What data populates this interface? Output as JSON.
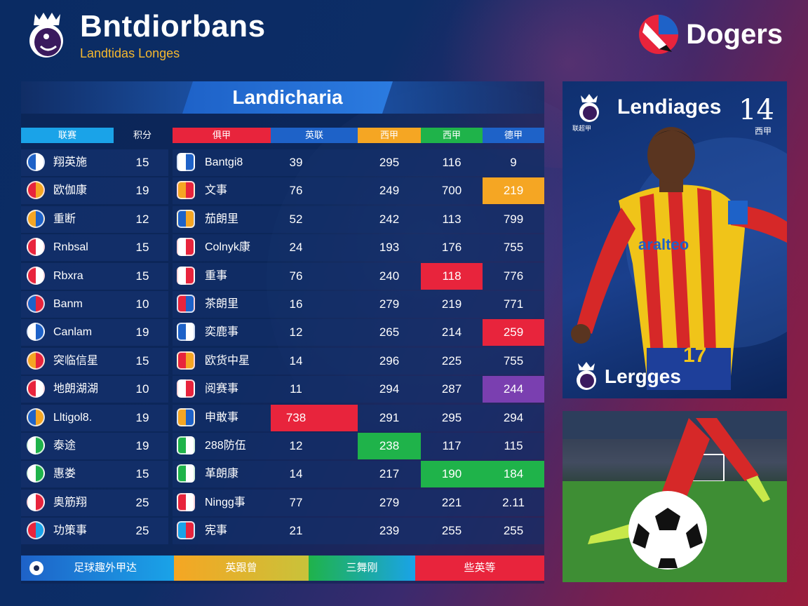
{
  "header": {
    "title": "Bntdiorbans",
    "subtitle": "Landtidas Longes",
    "partner_name": "Dogers"
  },
  "table": {
    "title": "Landicharia",
    "left_headers": [
      "联赛",
      "积分"
    ],
    "right_headers": [
      "俱甲",
      "英联",
      "西甲",
      "西甲",
      "德甲"
    ],
    "rows": [
      {
        "left_name": "翔英施",
        "left_val": "15",
        "club": "Bantgi8",
        "c1": "39",
        "c2": "295",
        "c3": "116",
        "c4": "9"
      },
      {
        "left_name": "欧伽康",
        "left_val": "19",
        "club": "文事",
        "c1": "76",
        "c2": "249",
        "c3": "700",
        "c4": "219"
      },
      {
        "left_name": "重断",
        "left_val": "12",
        "club": "茄朗里",
        "c1": "52",
        "c2": "242",
        "c3": "113",
        "c4": "799"
      },
      {
        "left_name": "Rnbsal",
        "left_val": "15",
        "club": "Colnyk康",
        "c1": "24",
        "c2": "193",
        "c3": "176",
        "c4": "755"
      },
      {
        "left_name": "Rbxra",
        "left_val": "15",
        "club": "重事",
        "c1": "76",
        "c2": "240",
        "c3": "118",
        "c4": "776"
      },
      {
        "left_name": "Banm",
        "left_val": "10",
        "club": "茶朗里",
        "c1": "16",
        "c2": "279",
        "c3": "219",
        "c4": "771"
      },
      {
        "left_name": "Canlam",
        "left_val": "19",
        "club": "奕鹿事",
        "c1": "12",
        "c2": "265",
        "c3": "214",
        "c4": "259"
      },
      {
        "left_name": "突临信星",
        "left_val": "15",
        "club": "欧货中星",
        "c1": "14",
        "c2": "296",
        "c3": "225",
        "c4": "755"
      },
      {
        "left_name": "地朗湖湖",
        "left_val": "10",
        "club": "阅赛事",
        "c1": "11",
        "c2": "294",
        "c3": "287",
        "c4": "244"
      },
      {
        "left_name": "Lltigol8.",
        "left_val": "19",
        "club": "申敢事",
        "c1": "738",
        "c2": "291",
        "c3": "295",
        "c4": "294"
      },
      {
        "left_name": "泰途",
        "left_val": "19",
        "club": "288防伍",
        "c1": "12",
        "c2": "238",
        "c3": "117",
        "c4": "115"
      },
      {
        "left_name": "惠娄",
        "left_val": "15",
        "club": "革朗康",
        "c1": "14",
        "c2": "217",
        "c3": "190",
        "c4": "184"
      },
      {
        "left_name": "奥筋翔",
        "left_val": "25",
        "club": "Ningg事",
        "c1": "77",
        "c2": "279",
        "c3": "221",
        "c4": "2.11"
      },
      {
        "left_name": "功策事",
        "left_val": "25",
        "club": "宪事",
        "c1": "21",
        "c2": "239",
        "c3": "255",
        "c4": "255"
      }
    ],
    "footer": [
      "足球趣外甲达",
      "英跟曾",
      "三舞刚",
      "些英等"
    ]
  },
  "card": {
    "title": "Lendiages",
    "number": "14",
    "number_sub": "西甲",
    "logo_text": "联超甲",
    "jersey_text": "aralteo",
    "shirt_number": "17",
    "footer": "Lergges"
  },
  "colors": {
    "red": "#e8243c",
    "green": "#1fb34a",
    "orange": "#f5a623",
    "purple": "#7a3fb0",
    "blue": "#1e62c8",
    "cyan": "#1aa3e8"
  }
}
